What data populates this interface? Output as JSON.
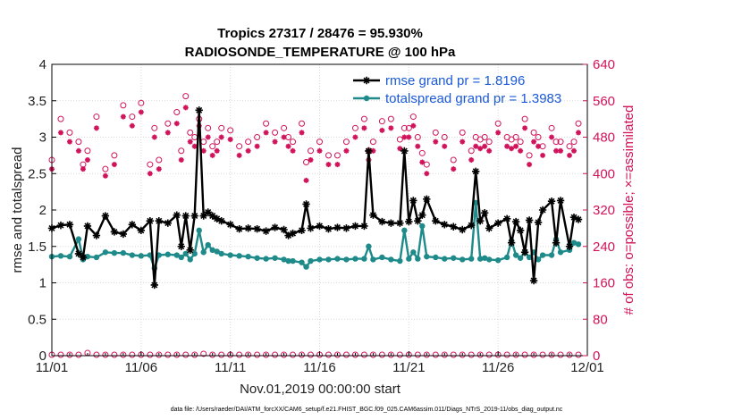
{
  "chart_data": {
    "type": "line",
    "title_line1": "Tropics 27317 / 28476 = 95.930%",
    "title_line2": "RADIOSONDE_TEMPERATURE @ 100 hPa",
    "xlabel": "Nov.01,2019 00:00:00 start",
    "ylabel_left": "rmse and totalspread",
    "ylabel_right": "# of obs: o=possible; ×=assimilated",
    "xlim": [
      0,
      30
    ],
    "ylim_left": [
      0,
      4
    ],
    "ylim_right": [
      0,
      640
    ],
    "x_ticks": [
      {
        "value": 0,
        "label": "11/01"
      },
      {
        "value": 5,
        "label": "11/06"
      },
      {
        "value": 10,
        "label": "11/11"
      },
      {
        "value": 15,
        "label": "11/16"
      },
      {
        "value": 20,
        "label": "11/21"
      },
      {
        "value": 25,
        "label": "11/26"
      },
      {
        "value": 30,
        "label": "12/01"
      }
    ],
    "y_ticks_left": [
      "0",
      "0.5",
      "1",
      "1.5",
      "2",
      "2.5",
      "3",
      "3.5",
      "4"
    ],
    "y_ticks_right": [
      "0",
      "80",
      "160",
      "240",
      "320",
      "400",
      "480",
      "560",
      "640"
    ],
    "grid": true,
    "legend_position": "top-right",
    "series": [
      {
        "name": "rmse grand pr = 1.8196",
        "color": "#000000",
        "marker": "asterisk",
        "axis": "left",
        "x": [
          0,
          0.5,
          1,
          1.5,
          1.75,
          2,
          2.5,
          3,
          3.5,
          4,
          4.5,
          5,
          5.5,
          5.75,
          6,
          6.5,
          7,
          7.25,
          7.5,
          7.75,
          8,
          8.25,
          8.5,
          8.75,
          9,
          9.25,
          9.5,
          10,
          10.5,
          11,
          11.5,
          12,
          12.5,
          13,
          13.25,
          13.5,
          14,
          14.25,
          14.5,
          15,
          15.5,
          16,
          16.5,
          17,
          17.5,
          17.75,
          18,
          18.5,
          19,
          19.5,
          19.75,
          20,
          20.25,
          20.5,
          20.75,
          21,
          21.5,
          22,
          22.5,
          23,
          23.5,
          23.75,
          24,
          24.25,
          24.5,
          25,
          25.5,
          25.75,
          26,
          26.25,
          26.5,
          26.75,
          27,
          27.25,
          27.5,
          28,
          28.25,
          28.5,
          29,
          29.25,
          29.5
        ],
        "values": [
          1.75,
          1.79,
          1.8,
          1.4,
          1.35,
          1.78,
          1.65,
          1.92,
          1.7,
          1.67,
          1.8,
          1.72,
          1.85,
          0.97,
          1.85,
          1.82,
          1.93,
          1.5,
          1.92,
          1.45,
          1.92,
          3.37,
          1.92,
          1.97,
          1.92,
          1.88,
          1.85,
          1.8,
          1.74,
          1.75,
          1.74,
          1.71,
          1.76,
          1.73,
          1.65,
          1.68,
          1.72,
          2.08,
          1.75,
          1.78,
          1.74,
          1.76,
          1.75,
          1.78,
          1.78,
          2.81,
          1.93,
          1.84,
          1.82,
          1.82,
          2.81,
          1.84,
          2.13,
          1.85,
          1.93,
          2.15,
          1.85,
          1.8,
          1.77,
          1.73,
          1.79,
          2.53,
          1.85,
          1.96,
          1.75,
          1.82,
          1.88,
          1.55,
          1.84,
          1.72,
          1.42,
          1.86,
          1.03,
          1.83,
          2.0,
          2.12,
          1.55,
          2.13,
          1.5,
          1.9,
          1.87
        ]
      },
      {
        "name": "totalspread grand pr = 1.3983",
        "color": "#1f8a8a",
        "marker": "dot",
        "axis": "left",
        "x": [
          0,
          0.5,
          1,
          1.5,
          1.75,
          2,
          2.5,
          3,
          3.5,
          4,
          4.5,
          5,
          5.5,
          5.75,
          6,
          6.5,
          7,
          7.25,
          7.5,
          7.75,
          8,
          8.25,
          8.5,
          8.75,
          9,
          9.25,
          9.5,
          10,
          10.5,
          11,
          11.5,
          12,
          12.5,
          13,
          13.25,
          13.5,
          14,
          14.25,
          14.5,
          15,
          15.5,
          16,
          16.5,
          17,
          17.5,
          17.75,
          18,
          18.5,
          19,
          19.5,
          19.75,
          20,
          20.25,
          20.5,
          20.75,
          21,
          21.5,
          22,
          22.5,
          23,
          23.5,
          23.75,
          24,
          24.25,
          24.5,
          25,
          25.5,
          25.75,
          26,
          26.25,
          26.5,
          26.75,
          27,
          27.25,
          27.5,
          28,
          28.25,
          28.5,
          29,
          29.25,
          29.5
        ],
        "values": [
          1.36,
          1.37,
          1.36,
          1.6,
          1.32,
          1.36,
          1.35,
          1.42,
          1.41,
          1.41,
          1.38,
          1.37,
          1.38,
          1.2,
          1.38,
          1.39,
          1.38,
          1.35,
          1.4,
          1.32,
          1.4,
          1.72,
          1.42,
          1.52,
          1.45,
          1.43,
          1.4,
          1.38,
          1.37,
          1.36,
          1.34,
          1.33,
          1.34,
          1.32,
          1.3,
          1.3,
          1.28,
          1.22,
          1.3,
          1.32,
          1.32,
          1.33,
          1.32,
          1.33,
          1.33,
          1.5,
          1.32,
          1.35,
          1.32,
          1.3,
          1.72,
          1.33,
          1.42,
          1.33,
          1.78,
          1.36,
          1.35,
          1.33,
          1.34,
          1.32,
          1.33,
          2.1,
          1.33,
          1.34,
          1.32,
          1.31,
          1.35,
          1.58,
          1.38,
          1.34,
          1.42,
          1.35,
          1.42,
          1.32,
          1.38,
          1.38,
          1.6,
          1.42,
          1.45,
          1.55,
          1.53
        ]
      },
      {
        "name": "obs possible",
        "color": "#d0135a",
        "marker": "open-circle",
        "axis": "right",
        "x": [
          0,
          0.5,
          1,
          1.5,
          1.75,
          2,
          2.5,
          3,
          3.5,
          4,
          4.5,
          5,
          5.5,
          5.75,
          6,
          6.5,
          7,
          7.25,
          7.5,
          7.75,
          8,
          8.25,
          8.5,
          8.75,
          9,
          9.25,
          9.5,
          10,
          10.5,
          11,
          11.5,
          12,
          12.5,
          13,
          13.25,
          13.5,
          14,
          14.25,
          14.5,
          15,
          15.5,
          16,
          16.5,
          17,
          17.5,
          17.75,
          18,
          18.5,
          19,
          19.5,
          19.75,
          20,
          20.25,
          20.5,
          20.75,
          21,
          21.5,
          22,
          22.5,
          23,
          23.5,
          23.75,
          24,
          24.25,
          24.5,
          25,
          25.5,
          25.75,
          26,
          26.25,
          26.5,
          26.75,
          27,
          27.25,
          27.5,
          28,
          28.25,
          28.5,
          29,
          29.25,
          29.5
        ],
        "values": [
          430,
          520,
          490,
          470,
          420,
          450,
          525,
          410,
          440,
          550,
          525,
          555,
          420,
          500,
          430,
          510,
          535,
          450,
          570,
          490,
          480,
          520,
          470,
          500,
          460,
          470,
          500,
          495,
          460,
          470,
          480,
          510,
          490,
          500,
          480,
          470,
          510,
          425,
          450,
          470,
          440,
          440,
          470,
          500,
          520,
          450,
          470,
          515,
          520,
          475,
          500,
          500,
          525,
          480,
          445,
          420,
          490,
          480,
          430,
          490,
          450,
          480,
          475,
          480,
          470,
          510,
          480,
          475,
          480,
          470,
          520,
          440,
          490,
          480,
          460,
          500,
          470,
          470,
          460,
          470,
          510
        ]
      },
      {
        "name": "obs assimilated",
        "color": "#d0135a",
        "marker": "asterisk",
        "axis": "right",
        "x": [
          0,
          0.5,
          1,
          1.5,
          1.75,
          2,
          2.5,
          3,
          3.5,
          4,
          4.5,
          5,
          5.5,
          5.75,
          6,
          6.5,
          7,
          7.25,
          7.5,
          7.75,
          8,
          8.25,
          8.5,
          8.75,
          9,
          9.25,
          9.5,
          10,
          10.5,
          11,
          11.5,
          12,
          12.5,
          13,
          13.25,
          13.5,
          14,
          14.25,
          14.5,
          15,
          15.5,
          16,
          16.5,
          17,
          17.5,
          17.75,
          18,
          18.5,
          19,
          19.5,
          19.75,
          20,
          20.25,
          20.5,
          20.75,
          21,
          21.5,
          22,
          22.5,
          23,
          23.5,
          23.75,
          24,
          24.25,
          24.5,
          25,
          25.5,
          25.75,
          26,
          26.25,
          26.5,
          26.75,
          27,
          27.25,
          27.5,
          28,
          28.25,
          28.5,
          29,
          29.25,
          29.5
        ],
        "values": [
          410,
          490,
          470,
          450,
          410,
          430,
          500,
          395,
          420,
          525,
          505,
          535,
          400,
          480,
          410,
          490,
          510,
          430,
          545,
          470,
          460,
          505,
          450,
          480,
          440,
          450,
          480,
          475,
          440,
          450,
          460,
          490,
          470,
          480,
          460,
          450,
          490,
          385,
          430,
          450,
          420,
          420,
          450,
          480,
          500,
          430,
          450,
          495,
          500,
          455,
          480,
          480,
          505,
          460,
          425,
          400,
          470,
          460,
          410,
          470,
          430,
          460,
          455,
          460,
          450,
          490,
          460,
          455,
          460,
          450,
          500,
          420,
          470,
          460,
          440,
          480,
          450,
          450,
          440,
          450,
          490
        ]
      },
      {
        "name": "obs near zero",
        "color": "#d0135a",
        "marker": "open-circle",
        "axis": "right",
        "x": [
          0,
          0.5,
          1,
          1.5,
          2,
          2.5,
          3,
          3.5,
          4,
          4.5,
          5,
          5.5,
          6,
          6.5,
          7,
          7.5,
          8,
          8.5,
          9,
          9.5,
          10,
          10.5,
          11,
          11.5,
          12,
          12.5,
          13,
          13.5,
          14,
          14.5,
          15,
          15.5,
          16,
          16.5,
          17,
          17.5,
          18,
          18.5,
          19,
          19.5,
          20,
          20.5,
          21,
          21.5,
          22,
          22.5,
          23,
          23.5,
          24,
          24.5,
          25,
          25.5,
          26,
          26.5,
          27,
          27.5,
          28,
          28.5,
          29,
          29.5
        ],
        "values": [
          2,
          2,
          2,
          2,
          6,
          2,
          2,
          2,
          2,
          2,
          2,
          2,
          2,
          2,
          2,
          2,
          2,
          4,
          2,
          2,
          2,
          2,
          2,
          2,
          2,
          2,
          2,
          2,
          2,
          2,
          2,
          2,
          2,
          2,
          2,
          2,
          2,
          2,
          2,
          2,
          2,
          2,
          2,
          2,
          2,
          2,
          2,
          2,
          2,
          2,
          2,
          2,
          2,
          2,
          2,
          2,
          2,
          2,
          2,
          2
        ]
      }
    ]
  },
  "footer": "data file: /Users/raeder/DAI/ATM_forcXX/CAM6_setup/f.e21.FHIST_BGC.f09_025.CAM6assim.011/Diags_NTrS_2019-11/obs_diag_output.nc"
}
